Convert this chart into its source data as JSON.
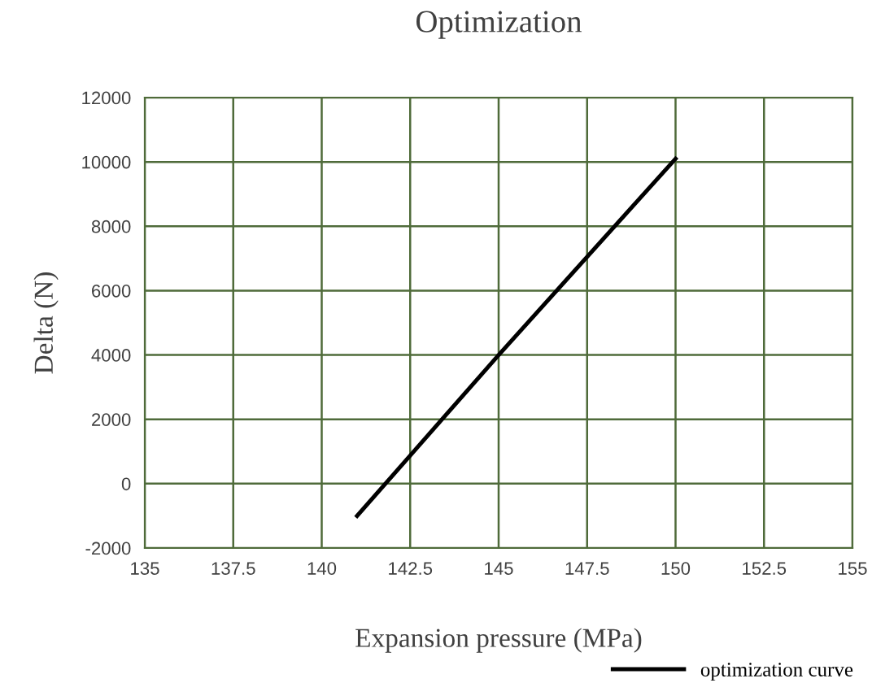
{
  "chart_data": {
    "type": "line",
    "title": "Optimization",
    "xlabel": "Expansion pressure (MPa)",
    "ylabel": "Delta (N)",
    "x": [
      141,
      145,
      150
    ],
    "series": [
      {
        "name": "optimization curve",
        "color": "#000000",
        "values": [
          -1000,
          4000,
          10100
        ]
      }
    ],
    "xlim": [
      135,
      155
    ],
    "xticks": [
      135,
      137.5,
      140,
      142.5,
      145,
      147.5,
      150,
      152.5,
      155
    ],
    "ylim": [
      -2000,
      12000
    ],
    "yticks": [
      -2000,
      0,
      2000,
      4000,
      6000,
      8000,
      10000,
      12000
    ],
    "grid": true,
    "legend": "bottom right",
    "marker": "none",
    "line_style": "solid"
  }
}
